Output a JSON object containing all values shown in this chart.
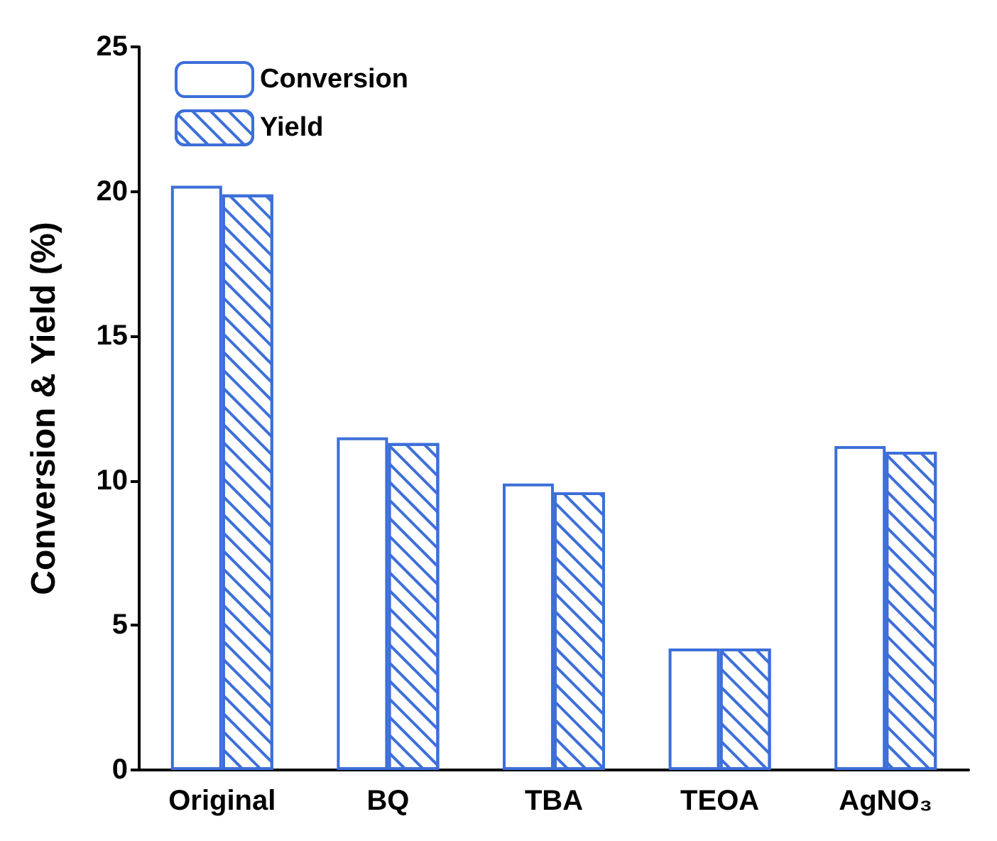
{
  "chart_data": {
    "type": "bar",
    "ylabel": "Conversion & Yield (%)",
    "categories": [
      "Original",
      "BQ",
      "TBA",
      "TEOA",
      "AgNO₃"
    ],
    "series": [
      {
        "name": "Conversion",
        "color": "#3d6fd9",
        "values": [
          20.2,
          11.5,
          9.9,
          4.2,
          11.2
        ]
      },
      {
        "name": "Yield",
        "color": "#3d6fd9",
        "values": [
          19.9,
          11.3,
          9.6,
          4.2,
          11.0
        ]
      }
    ],
    "ylim": [
      0,
      25
    ],
    "yticks": [
      0,
      5,
      10,
      15,
      20,
      25
    ],
    "grid": false,
    "legend": "top left"
  }
}
